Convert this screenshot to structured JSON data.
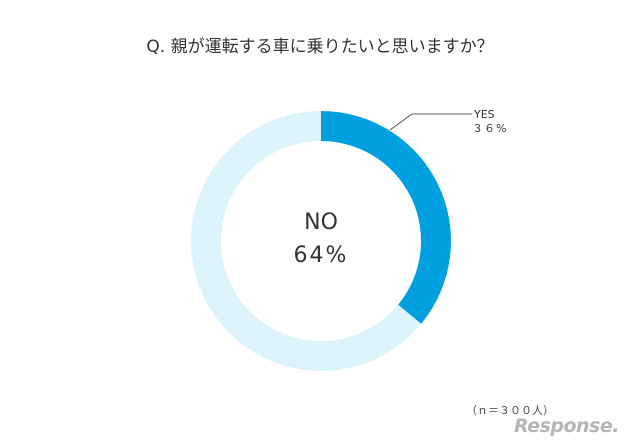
{
  "chart_data": {
    "type": "pie",
    "style": "donut",
    "title": "Q.  親が運転する車に乗りたいと思いますか？",
    "slices": [
      {
        "label": "YES",
        "value": 36,
        "value_label": "３６%",
        "color": "#00a0e0"
      },
      {
        "label": "NO",
        "value": 64,
        "value_label": "64%",
        "color": "#ddf3fc"
      }
    ],
    "note": "（ｎ＝３００人）"
  },
  "logo": {
    "text": "Response."
  }
}
